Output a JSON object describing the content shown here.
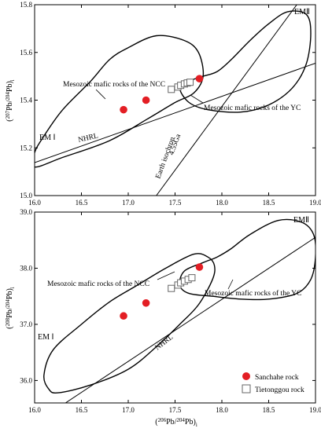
{
  "chart_data": [
    {
      "type": "scatter",
      "title": "",
      "xlabel": "",
      "ylabel": "(207Pb/204Pb)i",
      "ylabel_parts": {
        "open": "(",
        "sup1": "207",
        "mid": "Pb/",
        "sup2": "204",
        "close": "Pb)",
        "sub": "i"
      },
      "xlim": [
        16.0,
        19.0
      ],
      "ylim": [
        15.0,
        15.8
      ],
      "xticks": [
        "16.0",
        "16.5",
        "17.0",
        "17.5",
        "18.0",
        "18.5",
        "19.0"
      ],
      "yticks": [
        "15.0",
        "15.2",
        "15.4",
        "15.6",
        "15.8"
      ],
      "series": [
        {
          "name": "Sanchahe rock",
          "marker": "filled-circle",
          "color": "#e31e24",
          "points": [
            [
              16.95,
              15.36
            ],
            [
              17.19,
              15.4
            ],
            [
              17.76,
              15.49
            ]
          ]
        },
        {
          "name": "Tietonggou rock",
          "marker": "open-square",
          "color": "#666666",
          "points": [
            [
              17.46,
              15.445
            ],
            [
              17.53,
              15.455
            ],
            [
              17.56,
              15.462
            ],
            [
              17.6,
              15.468
            ],
            [
              17.63,
              15.472
            ],
            [
              17.66,
              15.475
            ]
          ]
        }
      ],
      "annotations": {
        "ncc_label": "Mesozoic mafic rocks of the NCC",
        "yc_label": "Mesozoic mafic rocks of the YC",
        "em1": "EM Ⅰ",
        "em2": "EMⅡ",
        "nhrl": "NHRL",
        "isochron_1": "Earth isochron",
        "isochron_2": "4.55Ga"
      },
      "regions": [
        {
          "name": "NCC",
          "outline": [
            [
              16.0,
              15.12
            ],
            [
              16.3,
              15.16
            ],
            [
              16.8,
              15.23
            ],
            [
              17.2,
              15.32
            ],
            [
              17.5,
              15.39
            ],
            [
              17.7,
              15.43
            ],
            [
              17.8,
              15.5
            ],
            [
              17.75,
              15.6
            ],
            [
              17.6,
              15.65
            ],
            [
              17.3,
              15.67
            ],
            [
              17.0,
              15.62
            ],
            [
              16.8,
              15.57
            ],
            [
              16.6,
              15.48
            ],
            [
              16.3,
              15.36
            ],
            [
              16.1,
              15.25
            ],
            [
              16.0,
              15.18
            ]
          ]
        },
        {
          "name": "YC",
          "outline": [
            [
              17.55,
              15.45
            ],
            [
              17.65,
              15.39
            ],
            [
              17.85,
              15.36
            ],
            [
              18.2,
              15.35
            ],
            [
              18.5,
              15.38
            ],
            [
              18.75,
              15.45
            ],
            [
              18.9,
              15.55
            ],
            [
              18.95,
              15.68
            ],
            [
              18.9,
              15.76
            ],
            [
              18.7,
              15.77
            ],
            [
              18.5,
              15.72
            ],
            [
              18.3,
              15.65
            ],
            [
              18.1,
              15.57
            ],
            [
              17.95,
              15.52
            ],
            [
              17.8,
              15.5
            ],
            [
              17.65,
              15.48
            ]
          ]
        }
      ],
      "lines": [
        {
          "name": "NHRL",
          "from": [
            16.0,
            15.138
          ],
          "to": [
            19.0,
            15.555
          ]
        },
        {
          "name": "Earth isochron",
          "from": [
            17.3,
            15.0
          ],
          "to": [
            18.8,
            15.8
          ]
        }
      ]
    },
    {
      "type": "scatter",
      "title": "",
      "xlabel": "(206Pb/204Pb)i",
      "xlabel_parts": {
        "open": "(",
        "sup1": "206",
        "mid": "Pb/",
        "sup2": "204",
        "close": "Pb)",
        "sub": "i"
      },
      "ylabel": "(208Pb/204Pb)i",
      "ylabel_parts": {
        "open": "(",
        "sup1": "208",
        "mid": "Pb/",
        "sup2": "204",
        "close": "Pb)",
        "sub": "i"
      },
      "xlim": [
        16.0,
        19.0
      ],
      "ylim": [
        35.6,
        39.0
      ],
      "xticks": [
        "16.0",
        "16.5",
        "17.0",
        "17.5",
        "18.0",
        "18.5",
        "19.0"
      ],
      "yticks": [
        "36.0",
        "37.0",
        "38.0",
        "39.0"
      ],
      "series": [
        {
          "name": "Sanchahe rock",
          "marker": "filled-circle",
          "color": "#e31e24",
          "points": [
            [
              16.95,
              37.15
            ],
            [
              17.19,
              37.38
            ],
            [
              17.76,
              38.02
            ]
          ]
        },
        {
          "name": "Tietonggou rock",
          "marker": "open-square",
          "color": "#666666",
          "points": [
            [
              17.46,
              37.64
            ],
            [
              17.53,
              37.7
            ],
            [
              17.56,
              37.74
            ],
            [
              17.6,
              37.77
            ],
            [
              17.64,
              37.8
            ],
            [
              17.68,
              37.83
            ]
          ]
        }
      ],
      "annotations": {
        "ncc_label": "Mesozoic mafic rocks of the NCC",
        "yc_label": "Mesozoic mafic rocks of the YC",
        "em1": "EM Ⅰ",
        "em2": "EMⅡ",
        "nhrl": "NHRL"
      },
      "legend": {
        "position": "bottom-right",
        "entries": [
          "Sanchahe rock",
          "Tietonggou rock"
        ]
      },
      "regions": [
        {
          "name": "NCC",
          "outline": [
            [
              16.25,
              35.78
            ],
            [
              16.6,
              35.92
            ],
            [
              17.0,
              36.2
            ],
            [
              17.3,
              36.6
            ],
            [
              17.55,
              37.0
            ],
            [
              17.75,
              37.35
            ],
            [
              17.9,
              37.8
            ],
            [
              17.92,
              38.05
            ],
            [
              17.85,
              38.2
            ],
            [
              17.7,
              38.25
            ],
            [
              17.4,
              38.0
            ],
            [
              17.1,
              37.7
            ],
            [
              16.8,
              37.4
            ],
            [
              16.5,
              37.0
            ],
            [
              16.2,
              36.55
            ],
            [
              16.1,
              36.1
            ],
            [
              16.15,
              35.85
            ]
          ]
        },
        {
          "name": "YC",
          "outline": [
            [
              17.55,
              37.7
            ],
            [
              17.65,
              37.55
            ],
            [
              17.9,
              37.5
            ],
            [
              18.2,
              37.45
            ],
            [
              18.5,
              37.45
            ],
            [
              18.8,
              37.55
            ],
            [
              18.95,
              37.8
            ],
            [
              19.0,
              38.2
            ],
            [
              18.98,
              38.6
            ],
            [
              18.85,
              38.82
            ],
            [
              18.6,
              38.85
            ],
            [
              18.3,
              38.6
            ],
            [
              18.1,
              38.35
            ],
            [
              17.95,
              38.2
            ],
            [
              17.8,
              38.1
            ],
            [
              17.6,
              37.95
            ]
          ]
        }
      ],
      "lines": [
        {
          "name": "NHRL",
          "from": [
            16.33,
            35.6
          ],
          "to": [
            19.0,
            38.55
          ]
        }
      ]
    }
  ]
}
